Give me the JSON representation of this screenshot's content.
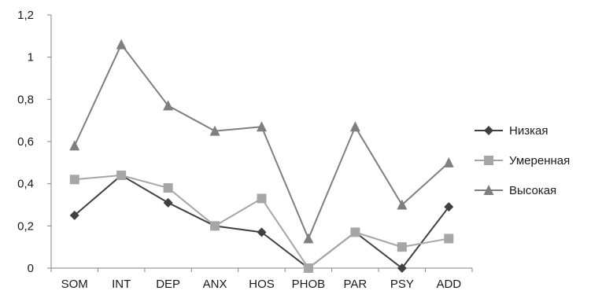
{
  "chart_data": {
    "type": "line",
    "title": "",
    "xlabel": "",
    "ylabel": "",
    "categories": [
      "SOM",
      "INT",
      "DEP",
      "ANX",
      "HOS",
      "PHOB",
      "PAR",
      "PSY",
      "ADD"
    ],
    "ylim": [
      0,
      1.2
    ],
    "yticks": [
      "0",
      "0,2",
      "0,4",
      "0,6",
      "0,8",
      "1",
      "1,2"
    ],
    "ytick_values": [
      0,
      0.2,
      0.4,
      0.6,
      0.8,
      1.0,
      1.2
    ],
    "grid": false,
    "legend_position": "right",
    "series": [
      {
        "name": "Низкая",
        "marker": "diamond",
        "color": "#404040",
        "values": [
          0.25,
          0.44,
          0.31,
          0.2,
          0.17,
          0.0,
          0.17,
          0.0,
          0.29
        ]
      },
      {
        "name": "Умеренная",
        "marker": "square",
        "color": "#a6a6a6",
        "values": [
          0.42,
          0.44,
          0.38,
          0.2,
          0.33,
          0.0,
          0.17,
          0.1,
          0.14
        ]
      },
      {
        "name": "Высокая",
        "marker": "triangle",
        "color": "#7f7f7f",
        "values": [
          0.58,
          1.06,
          0.77,
          0.65,
          0.67,
          0.14,
          0.67,
          0.3,
          0.5
        ]
      }
    ]
  }
}
